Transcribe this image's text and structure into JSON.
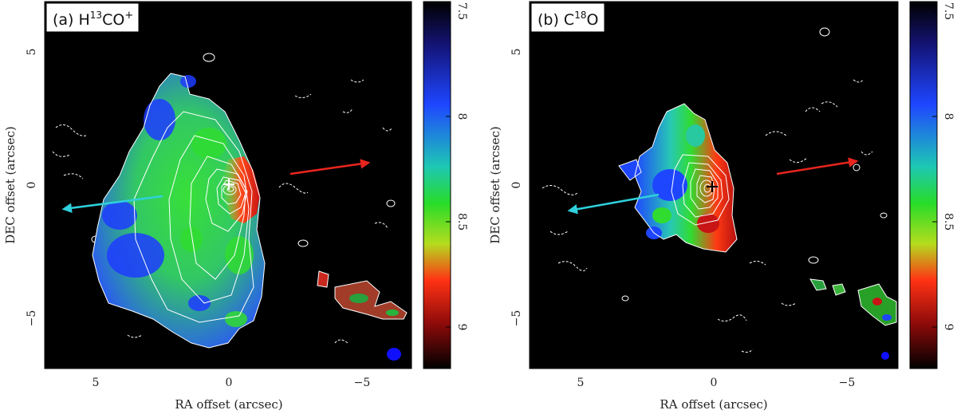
{
  "panels": [
    {
      "id": "a",
      "title_prefix": "(a) H",
      "title_iso": "13",
      "title_mid": "CO",
      "title_sup": "+",
      "x_label": "RA offset (arcsec)",
      "y_label": "DEC offset (arcsec)",
      "x_ticks": [
        "5",
        "0",
        "−5"
      ],
      "y_ticks": [
        "5",
        "0",
        "−5"
      ],
      "colorbar_ticks": [
        "7.5",
        "8",
        "8.5",
        "9"
      ]
    },
    {
      "id": "b",
      "title_prefix": "(b) C",
      "title_iso": "18",
      "title_mid": "O",
      "title_sup": "",
      "x_label": "RA offset (arcsec)",
      "y_label": "DEC offset (arcsec)",
      "x_ticks": [
        "5",
        "0",
        "−5"
      ],
      "y_ticks": [
        "5",
        "0",
        "−5"
      ],
      "colorbar_ticks": [
        "7.5",
        "8",
        "8.5",
        "9"
      ]
    }
  ],
  "colors": {
    "background": "#000000",
    "contour": "#ffffff",
    "outflow_red": "#e8251e",
    "outflow_blue": "#2fd0dc",
    "beam": "#1010ff",
    "colormap": [
      "#000000",
      "#1414a0",
      "#1e3cff",
      "#1ec8c8",
      "#2ddc2d",
      "#c8dc1e",
      "#ff2d14",
      "#8c0a0a",
      "#000000"
    ]
  }
}
